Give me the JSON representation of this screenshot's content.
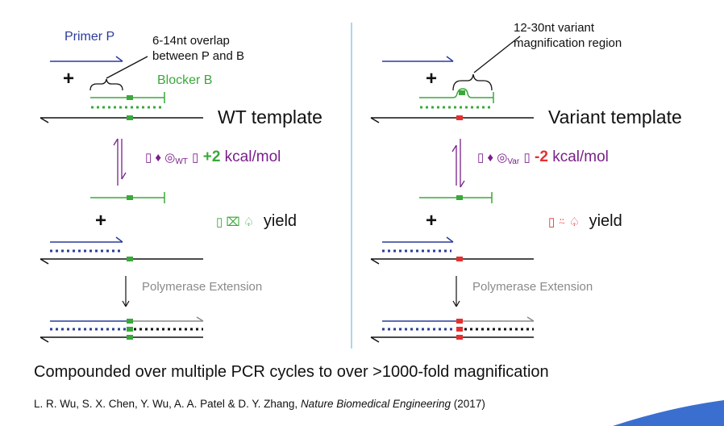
{
  "colors": {
    "primer": "#2b3c99",
    "blocker": "#3aa83a",
    "template": "#111111",
    "variant_mark": "#e53030",
    "energy_purple": "#7a1f8a",
    "extension": "#8a8a8a",
    "divider": "#8fc8e8",
    "corner_accent": "#3a6fd0"
  },
  "left_panel": {
    "primer_label": "Primer P",
    "overlap_note_line1": "6-14nt overlap",
    "overlap_note_line2": "between P and B",
    "blocker_label": "Blocker B",
    "template_label": "WT template",
    "plus_top": "+",
    "energy_symbol": "▯ ♦ ◎",
    "energy_subscript": "WT",
    "energy_symbol_tail": "▯",
    "energy_value": "+2",
    "energy_unit": "kcal/mol",
    "plus_bottom": "+",
    "yield_symbol": "▯ ⌧ ♤",
    "yield_label": "yield",
    "extension_label": "Polymerase Extension"
  },
  "right_panel": {
    "region_note_line1": "12-30nt variant",
    "region_note_line2": "magnification region",
    "template_label": "Variant template",
    "plus_top": "+",
    "energy_symbol": "▯ ♦ ◎",
    "energy_subscript": "Var",
    "energy_symbol_tail": "▯",
    "energy_value": "-2",
    "energy_unit": "kcal/mol",
    "plus_bottom": "+",
    "yield_symbol": "▯ ⍨ ♤",
    "yield_label": "yield",
    "extension_label": "Polymerase Extension"
  },
  "caption": "Compounded over multiple PCR cycles to over >1000-fold magnification",
  "citation": {
    "authors": "L. R. Wu, S. X. Chen, Y. Wu, A. A. Patel & D. Y. Zhang, ",
    "journal": "Nature Biomedical Engineering",
    "year": " (2017)"
  }
}
